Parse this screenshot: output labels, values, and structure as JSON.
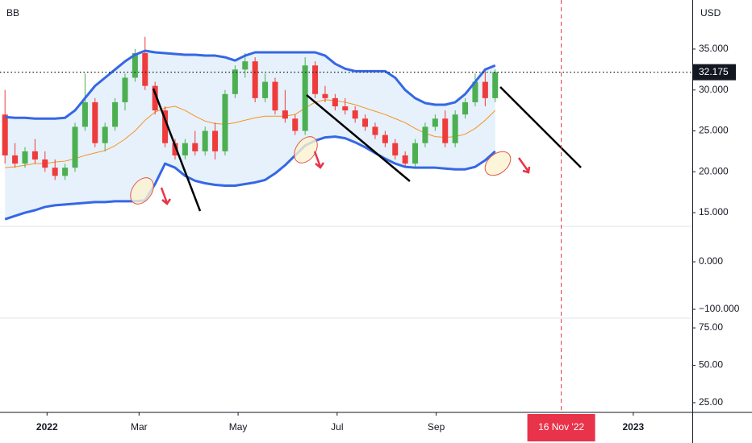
{
  "chart_data": [
    {
      "type": "candlestick",
      "indicator": "BB",
      "currency": "USD",
      "open": [
        27,
        22,
        21,
        22.5,
        21.5,
        20.5,
        19.5,
        20.5,
        25.5,
        28.5,
        23.5,
        25.5,
        28.5,
        31.5,
        34.5,
        30.5,
        27.5,
        23.5,
        22,
        23.5,
        22.5,
        25,
        22.5,
        29.5,
        32.5,
        33.5,
        29,
        31,
        27.5,
        26.5,
        25,
        33,
        29.5,
        29,
        28,
        27.5,
        26.5,
        25.5,
        24.5,
        23.5,
        22,
        21,
        23.5,
        25.5,
        26.5,
        23.5,
        27,
        28.5,
        31,
        29
      ],
      "high": [
        30,
        23.5,
        23,
        24,
        22.5,
        21.5,
        21,
        26,
        32,
        29,
        26,
        29,
        32,
        35,
        36.5,
        31,
        28,
        24,
        24,
        25,
        25.5,
        26,
        30,
        33,
        34.5,
        34,
        32,
        31.5,
        30,
        27,
        34,
        33.5,
        30.5,
        29.5,
        29,
        28,
        27,
        26,
        25,
        24,
        22.5,
        24,
        26,
        27,
        27.5,
        27.5,
        29,
        32,
        32.5,
        32.5
      ],
      "low": [
        21,
        20.5,
        20.5,
        21,
        20,
        19,
        19,
        20,
        25,
        23,
        22.5,
        25,
        27.5,
        31,
        30,
        27,
        23,
        21.5,
        21.5,
        22,
        22,
        21.5,
        22,
        29,
        31.5,
        28.5,
        28.5,
        27,
        26,
        24.5,
        24.5,
        29,
        28.5,
        27.5,
        27,
        26,
        25,
        24,
        23,
        21.5,
        20.5,
        20.5,
        23,
        25,
        23,
        23,
        26.5,
        28,
        28,
        28.5
      ],
      "close": [
        22,
        21,
        22.5,
        21.5,
        20.5,
        19.5,
        20.5,
        25.5,
        28.5,
        23.5,
        25.5,
        28.5,
        31.5,
        34.5,
        30.5,
        27.5,
        23.5,
        22,
        23.5,
        22.5,
        25,
        22.5,
        29.5,
        32.5,
        33.5,
        29,
        31,
        27.5,
        26.5,
        25,
        33,
        29.5,
        29,
        28,
        27.5,
        26.5,
        25.5,
        24.5,
        23.5,
        22,
        21,
        23.5,
        25.5,
        26.5,
        23.5,
        27,
        28.5,
        31,
        29,
        32.175
      ],
      "upper": [
        26.7,
        26.6,
        26.6,
        26.5,
        26.5,
        26.5,
        26.6,
        27.5,
        29,
        30.5,
        31.5,
        32.5,
        33.5,
        34.3,
        34.8,
        34.6,
        34.5,
        34.4,
        34.3,
        34.3,
        34.2,
        34.2,
        34,
        33.6,
        34.2,
        34.6,
        34.6,
        34.6,
        34.6,
        34.6,
        34.6,
        34.6,
        34.2,
        33.2,
        32.6,
        32.3,
        32.3,
        32.3,
        32.3,
        31.5,
        30,
        29,
        28.4,
        28.2,
        28.2,
        28.5,
        29.5,
        31,
        32.5,
        33
      ],
      "middle": [
        20.5,
        20.6,
        20.8,
        21,
        21,
        21.2,
        21.3,
        21.6,
        22,
        22.3,
        22.6,
        23.2,
        24,
        25,
        26.3,
        27.3,
        27.8,
        28,
        27.5,
        26.8,
        26.2,
        25.9,
        25.8,
        26,
        26.3,
        26.6,
        26.8,
        26.8,
        26.8,
        27,
        27.8,
        28.5,
        28.8,
        28.7,
        28.5,
        28.2,
        27.8,
        27.4,
        27,
        26.5,
        26,
        25.3,
        24.7,
        24.3,
        24.2,
        24.3,
        24.6,
        25.3,
        26.3,
        27.5
      ],
      "lower": [
        14.2,
        14.6,
        15,
        15.3,
        15.7,
        15.9,
        16,
        16.1,
        16.2,
        16.3,
        16.3,
        16.4,
        16.4,
        16.4,
        16.5,
        18.5,
        21,
        20.5,
        19.5,
        18.9,
        18.6,
        18.4,
        18.3,
        18.3,
        18.5,
        18.7,
        19,
        19.8,
        20.8,
        22,
        23.2,
        23.8,
        24.2,
        24.3,
        24.1,
        23.6,
        23,
        22.3,
        21.6,
        21,
        20.6,
        20.5,
        20.5,
        20.5,
        20.4,
        20.3,
        20.3,
        20.6,
        21.4,
        22.5
      ],
      "up_color": "#4caf50",
      "down_color": "#ef3b3b",
      "band_color": "#3567e6",
      "basis_color": "#f7931e",
      "band_fill": "#e6f1fb",
      "last_price": 32.175,
      "xlim": [
        -0.5,
        68.7
      ],
      "xticks": [
        {
          "value": 4.2,
          "label": "2022"
        },
        {
          "value": 13.4,
          "label": "Mar"
        },
        {
          "value": 23.3,
          "label": "May"
        },
        {
          "value": 33.2,
          "label": "Jul"
        },
        {
          "value": 43.1,
          "label": "Sep"
        },
        {
          "value": 62.8,
          "label": "2023"
        }
      ],
      "crosshair": {
        "value": 55.6,
        "label": "16 Nov '22"
      },
      "ylim": [
        13.33,
        41.0
      ],
      "yticks": [
        {
          "value": 15,
          "label": "15.000"
        },
        {
          "value": 20,
          "label": "20.000"
        },
        {
          "value": 25,
          "label": "25.000"
        },
        {
          "value": 30,
          "label": "30.000"
        },
        {
          "value": 35,
          "label": "35.000"
        }
      ]
    },
    {
      "type": "line",
      "ylim": [
        -118.6,
        74.6
      ],
      "yticks": [
        {
          "value": 0,
          "label": "0.000"
        },
        {
          "value": -100,
          "label": "−100.000"
        }
      ]
    },
    {
      "type": "line",
      "ylim": [
        18.5,
        81.5
      ],
      "yticks": [
        {
          "value": 25,
          "label": "25.00"
        },
        {
          "value": 50,
          "label": "50.00"
        },
        {
          "value": 75,
          "label": "75.00"
        }
      ]
    }
  ]
}
